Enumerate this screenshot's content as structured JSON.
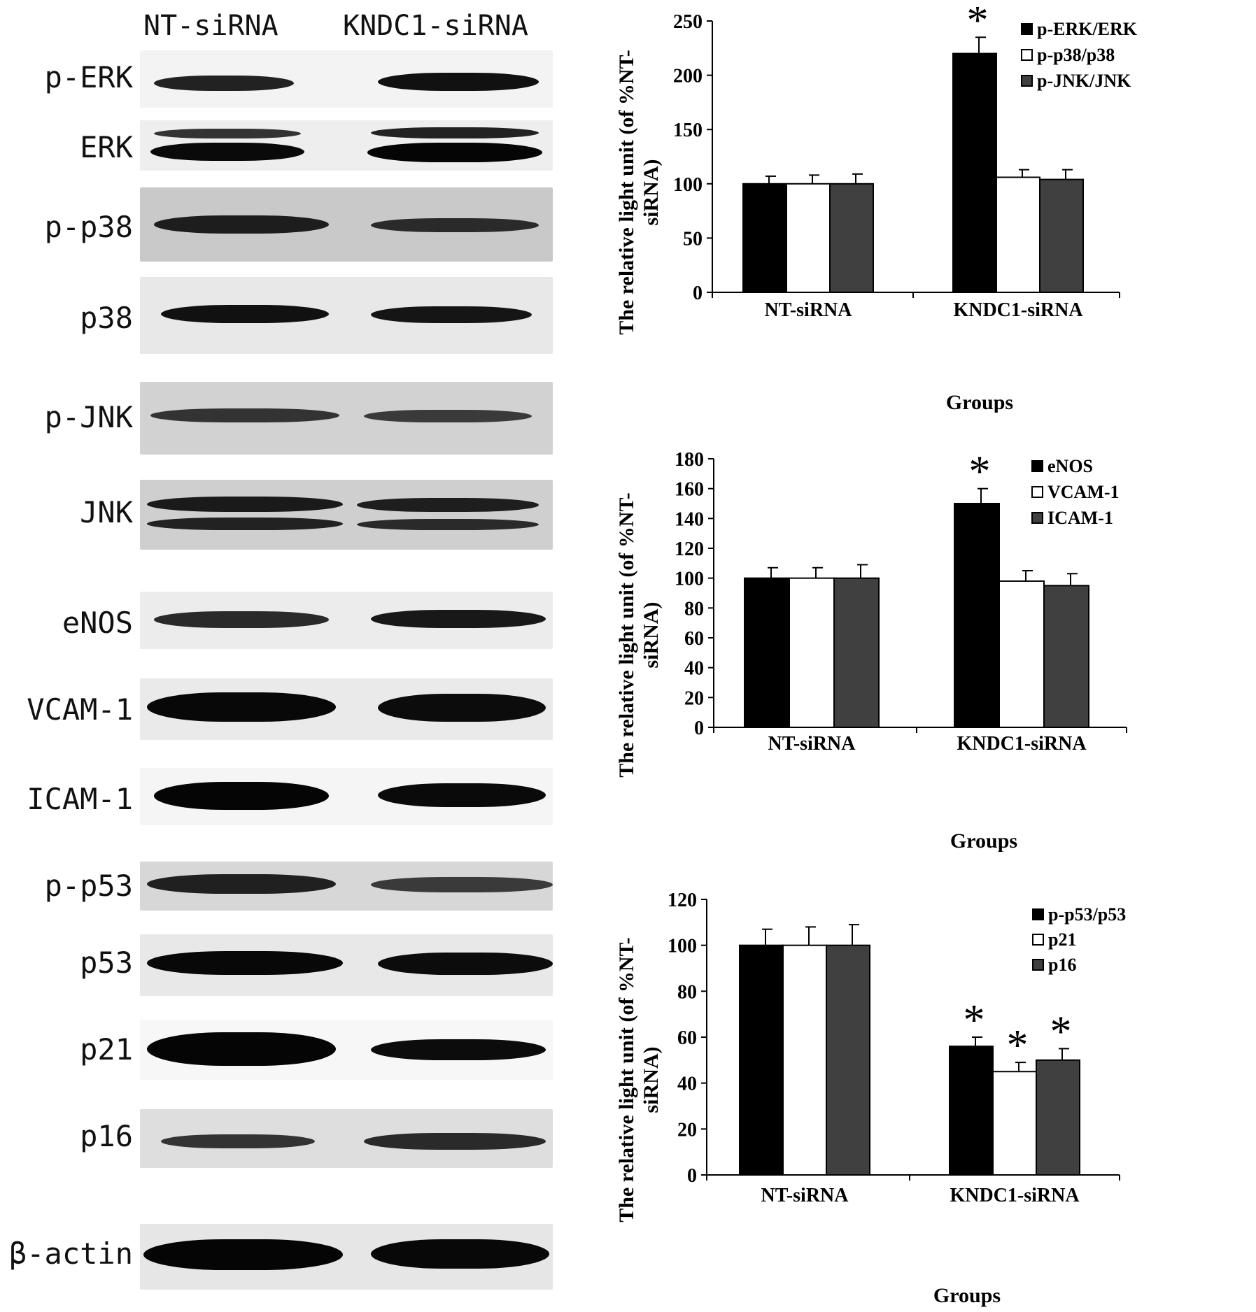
{
  "lanes": [
    "NT-siRNA",
    "KNDC1-siRNA"
  ],
  "blots": [
    {
      "label": "p-ERK"
    },
    {
      "label": "ERK"
    },
    {
      "label": "p-p38"
    },
    {
      "label": "p38"
    },
    {
      "label": "p-JNK"
    },
    {
      "label": "JNK"
    },
    {
      "label": "eNOS"
    },
    {
      "label": "VCAM-1"
    },
    {
      "label": "ICAM-1"
    },
    {
      "label": "p-p53"
    },
    {
      "label": "p53"
    },
    {
      "label": "p21"
    },
    {
      "label": "p16"
    },
    {
      "label": "β-actin"
    }
  ],
  "chart_data": [
    {
      "type": "bar",
      "categories": [
        "NT-siRNA",
        "KNDC1-siRNA"
      ],
      "xlabel": "Groups",
      "ylabel": "The relative light unit (of %NT-siRNA)",
      "ylim": [
        0,
        250
      ],
      "yticks": [
        0,
        50,
        100,
        150,
        200,
        250
      ],
      "legend_position": "top-right",
      "series": [
        {
          "name": "p-ERK/ERK",
          "values": [
            100,
            220
          ],
          "errors": [
            7,
            15
          ],
          "significant": [
            false,
            true
          ],
          "color": "#000000"
        },
        {
          "name": "p-p38/p38",
          "values": [
            100,
            106
          ],
          "errors": [
            8,
            7
          ],
          "significant": [
            false,
            false
          ],
          "color": "#ffffff"
        },
        {
          "name": "p-JNK/JNK",
          "values": [
            100,
            104
          ],
          "errors": [
            9,
            9
          ],
          "significant": [
            false,
            false
          ],
          "color": "#404040"
        }
      ],
      "annotation": "*"
    },
    {
      "type": "bar",
      "categories": [
        "NT-siRNA",
        "KNDC1-siRNA"
      ],
      "xlabel": "Groups",
      "ylabel": "The relative light unit (of %NT-siRNA)",
      "ylim": [
        0,
        180
      ],
      "yticks": [
        0,
        20,
        40,
        60,
        80,
        100,
        120,
        140,
        160,
        180
      ],
      "legend_position": "top-right",
      "series": [
        {
          "name": "eNOS",
          "values": [
            100,
            150
          ],
          "errors": [
            7,
            10
          ],
          "significant": [
            false,
            true
          ],
          "color": "#000000"
        },
        {
          "name": "VCAM-1",
          "values": [
            100,
            98
          ],
          "errors": [
            7,
            7
          ],
          "significant": [
            false,
            false
          ],
          "color": "#ffffff"
        },
        {
          "name": "ICAM-1",
          "values": [
            100,
            95
          ],
          "errors": [
            9,
            8
          ],
          "significant": [
            false,
            false
          ],
          "color": "#404040"
        }
      ],
      "annotation": "*"
    },
    {
      "type": "bar",
      "categories": [
        "NT-siRNA",
        "KNDC1-siRNA"
      ],
      "xlabel": "Groups",
      "ylabel": "The relative light unit (of %NT-siRNA)",
      "ylim": [
        0,
        120
      ],
      "yticks": [
        0,
        20,
        40,
        60,
        80,
        100,
        120
      ],
      "legend_position": "top-right",
      "series": [
        {
          "name": "p-p53/p53",
          "values": [
            100,
            56
          ],
          "errors": [
            7,
            4
          ],
          "significant": [
            false,
            true
          ],
          "color": "#000000"
        },
        {
          "name": "p21",
          "values": [
            100,
            45
          ],
          "errors": [
            8,
            4
          ],
          "significant": [
            false,
            true
          ],
          "color": "#ffffff"
        },
        {
          "name": "p16",
          "values": [
            100,
            50
          ],
          "errors": [
            9,
            5
          ],
          "significant": [
            false,
            true
          ],
          "color": "#404040"
        }
      ],
      "annotation": "*"
    }
  ]
}
